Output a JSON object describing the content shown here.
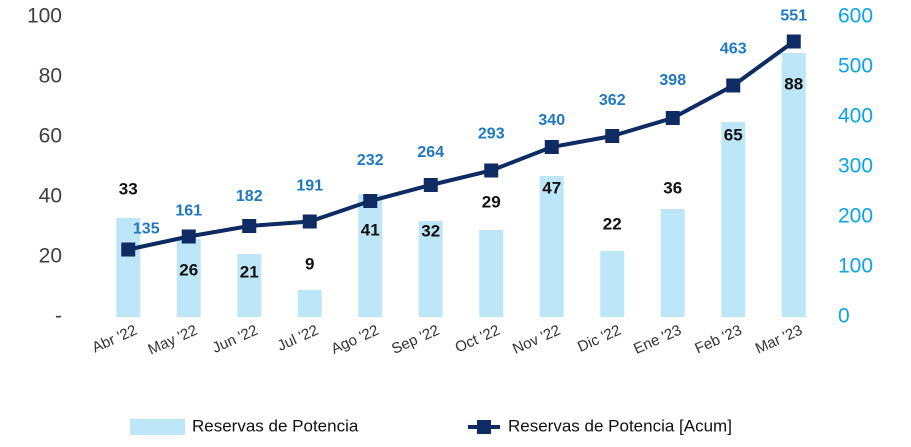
{
  "chart_data": {
    "type": "bar",
    "categories": [
      "Abr '22",
      "May '22",
      "Jun '22",
      "Jul '22",
      "Ago '22",
      "Sep '22",
      "Oct '22",
      "Nov '22",
      "Dic '22",
      "Ene '23",
      "Feb '23",
      "Mar '23"
    ],
    "series": [
      {
        "name": "Reservas de Potencia",
        "type": "bar",
        "color": "#bde6f8",
        "values": [
          33,
          26,
          21,
          9,
          41,
          32,
          29,
          47,
          22,
          36,
          65,
          88
        ]
      },
      {
        "name": "Reservas de Potencia [Acum]",
        "type": "line",
        "axis": "y2",
        "color": "#0e2b63",
        "values": [
          135,
          161,
          182,
          191,
          232,
          264,
          293,
          340,
          362,
          398,
          463,
          551
        ]
      }
    ],
    "ylim": [
      0,
      100
    ],
    "yticks": [
      {
        "value": 0,
        "label": "-"
      },
      20,
      40,
      60,
      80,
      100
    ],
    "y2lim": [
      0,
      600
    ],
    "y2ticks": [
      0,
      100,
      200,
      300,
      400,
      500,
      600
    ]
  }
}
